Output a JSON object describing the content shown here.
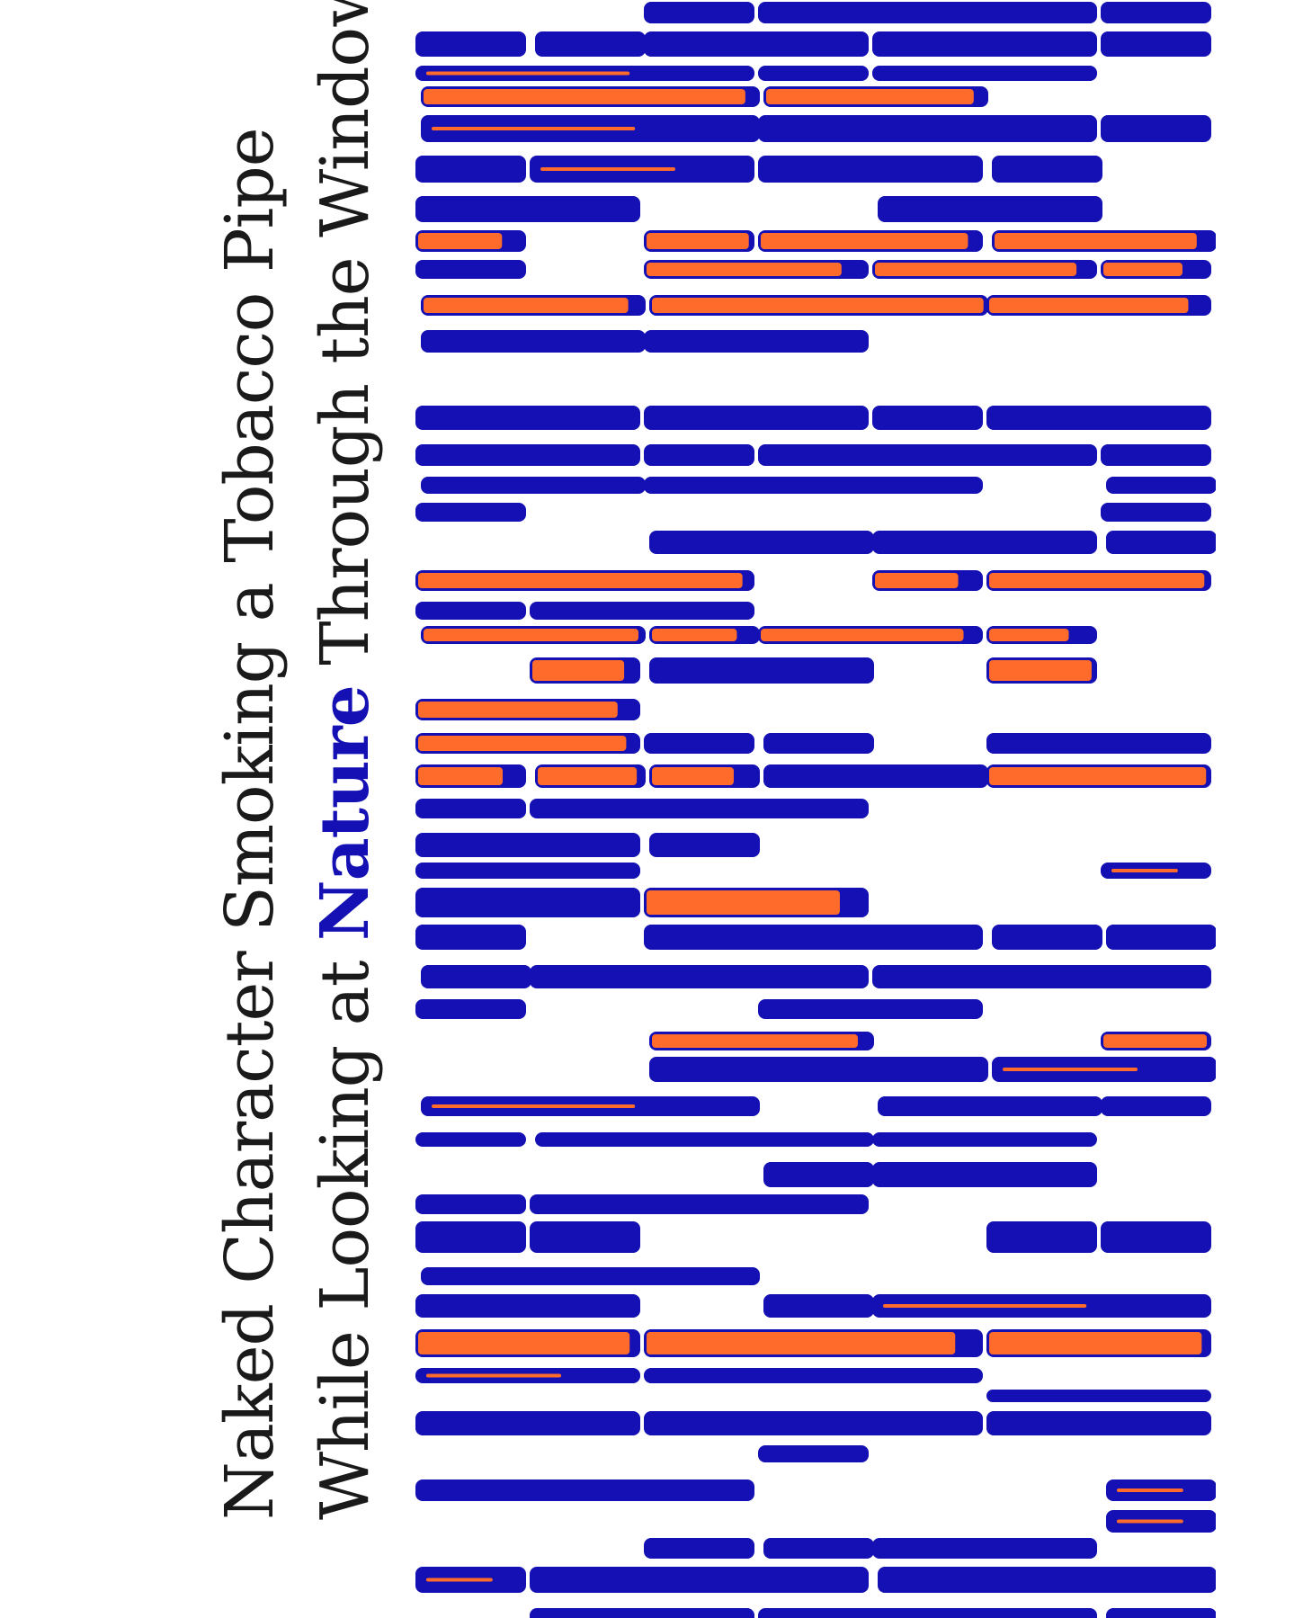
{
  "title": {
    "line1": "Naked Character Smoking a Tobacco Pipe",
    "line2_before": "While Looking at ",
    "line2_accent": "Nature",
    "line2_after": " Through the Window"
  },
  "colors": {
    "background": "#ffffff",
    "text": "#1a1a1a",
    "accent_blue": "#1410b4",
    "accent_orange": "#ff6b2b"
  },
  "pattern": {
    "description_icon": "horizontal-bar-glitch-pattern"
  }
}
